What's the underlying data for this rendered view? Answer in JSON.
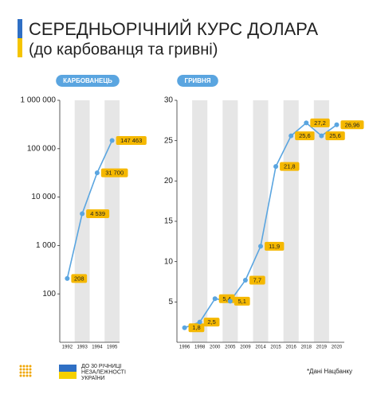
{
  "header": {
    "title": "СЕРЕДНЬОРІЧНИЙ КУРС ДОЛАРА",
    "subtitle": "(до карбованця та гривні)"
  },
  "footer": {
    "note": "ДО 30 РІЧНИЦІ НЕЗАЛЕЖНОСТІ УКРАЇНИ",
    "source": "*Дані Нацбанку"
  },
  "chart_data": [
    {
      "type": "line",
      "title": "КАРБОВАНЕЦЬ",
      "log_scale": true,
      "color": "#5aa5e0",
      "label_color": "#f5b800",
      "categories": [
        "1992",
        "1993",
        "1994",
        "1995"
      ],
      "values": [
        208,
        4539,
        31700,
        147463
      ],
      "value_labels": [
        "208",
        "4 539",
        "31 700",
        "147 463"
      ],
      "ylim": [
        10,
        1000000
      ],
      "yticks": [
        {
          "value": 100,
          "label": "100"
        },
        {
          "value": 1000,
          "label": "1 000"
        },
        {
          "value": 10000,
          "label": "10 000"
        },
        {
          "value": 100000,
          "label": "100 000"
        },
        {
          "value": 1000000,
          "label": "1 000 000"
        }
      ]
    },
    {
      "type": "line",
      "title": "ГРИВНЯ",
      "log_scale": false,
      "color": "#5aa5e0",
      "label_color": "#f5b800",
      "categories": [
        "1996",
        "1998",
        "2000",
        "2005",
        "2009",
        "2014",
        "2015",
        "2016",
        "2018",
        "2019",
        "2020"
      ],
      "values": [
        1.8,
        2.5,
        5.4,
        5.1,
        7.7,
        11.9,
        21.8,
        25.6,
        27.2,
        25.6,
        26.96
      ],
      "value_labels": [
        "1,8",
        "2,5",
        "5,4",
        "5,1",
        "7,7",
        "11,9",
        "21,8",
        "25,6",
        "27,2",
        "25,6",
        "26,96"
      ],
      "ylim": [
        0,
        30
      ],
      "yticks": [
        5,
        10,
        15,
        20,
        25,
        30
      ]
    }
  ]
}
